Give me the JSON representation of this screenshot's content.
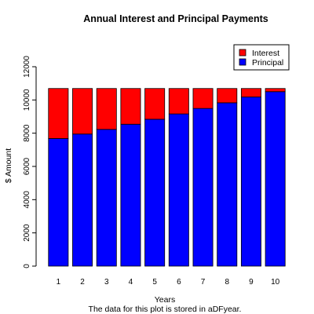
{
  "chart_data": {
    "type": "bar",
    "stacked": true,
    "title": "Annual Interest and Principal Payments",
    "xlabel": "Years",
    "ylabel": "$ Amount",
    "subtitle": "The data for this plot is stored in aDFyear.",
    "categories": [
      "1",
      "2",
      "3",
      "4",
      "5",
      "6",
      "7",
      "8",
      "9",
      "10"
    ],
    "series": [
      {
        "name": "Principal",
        "color": "#0000ff",
        "values": [
          7680,
          7950,
          8230,
          8540,
          8840,
          9160,
          9490,
          9830,
          10180,
          10500
        ]
      },
      {
        "name": "Interest",
        "color": "#ff0000",
        "values": [
          3010,
          2740,
          2460,
          2150,
          1850,
          1530,
          1200,
          860,
          510,
          190
        ]
      }
    ],
    "ylim": [
      0,
      12000
    ],
    "yticks": [
      0,
      2000,
      4000,
      6000,
      8000,
      10000,
      12000
    ],
    "legend": {
      "position": "top-right",
      "entries": [
        "Interest",
        "Principal"
      ]
    },
    "grid": false
  }
}
